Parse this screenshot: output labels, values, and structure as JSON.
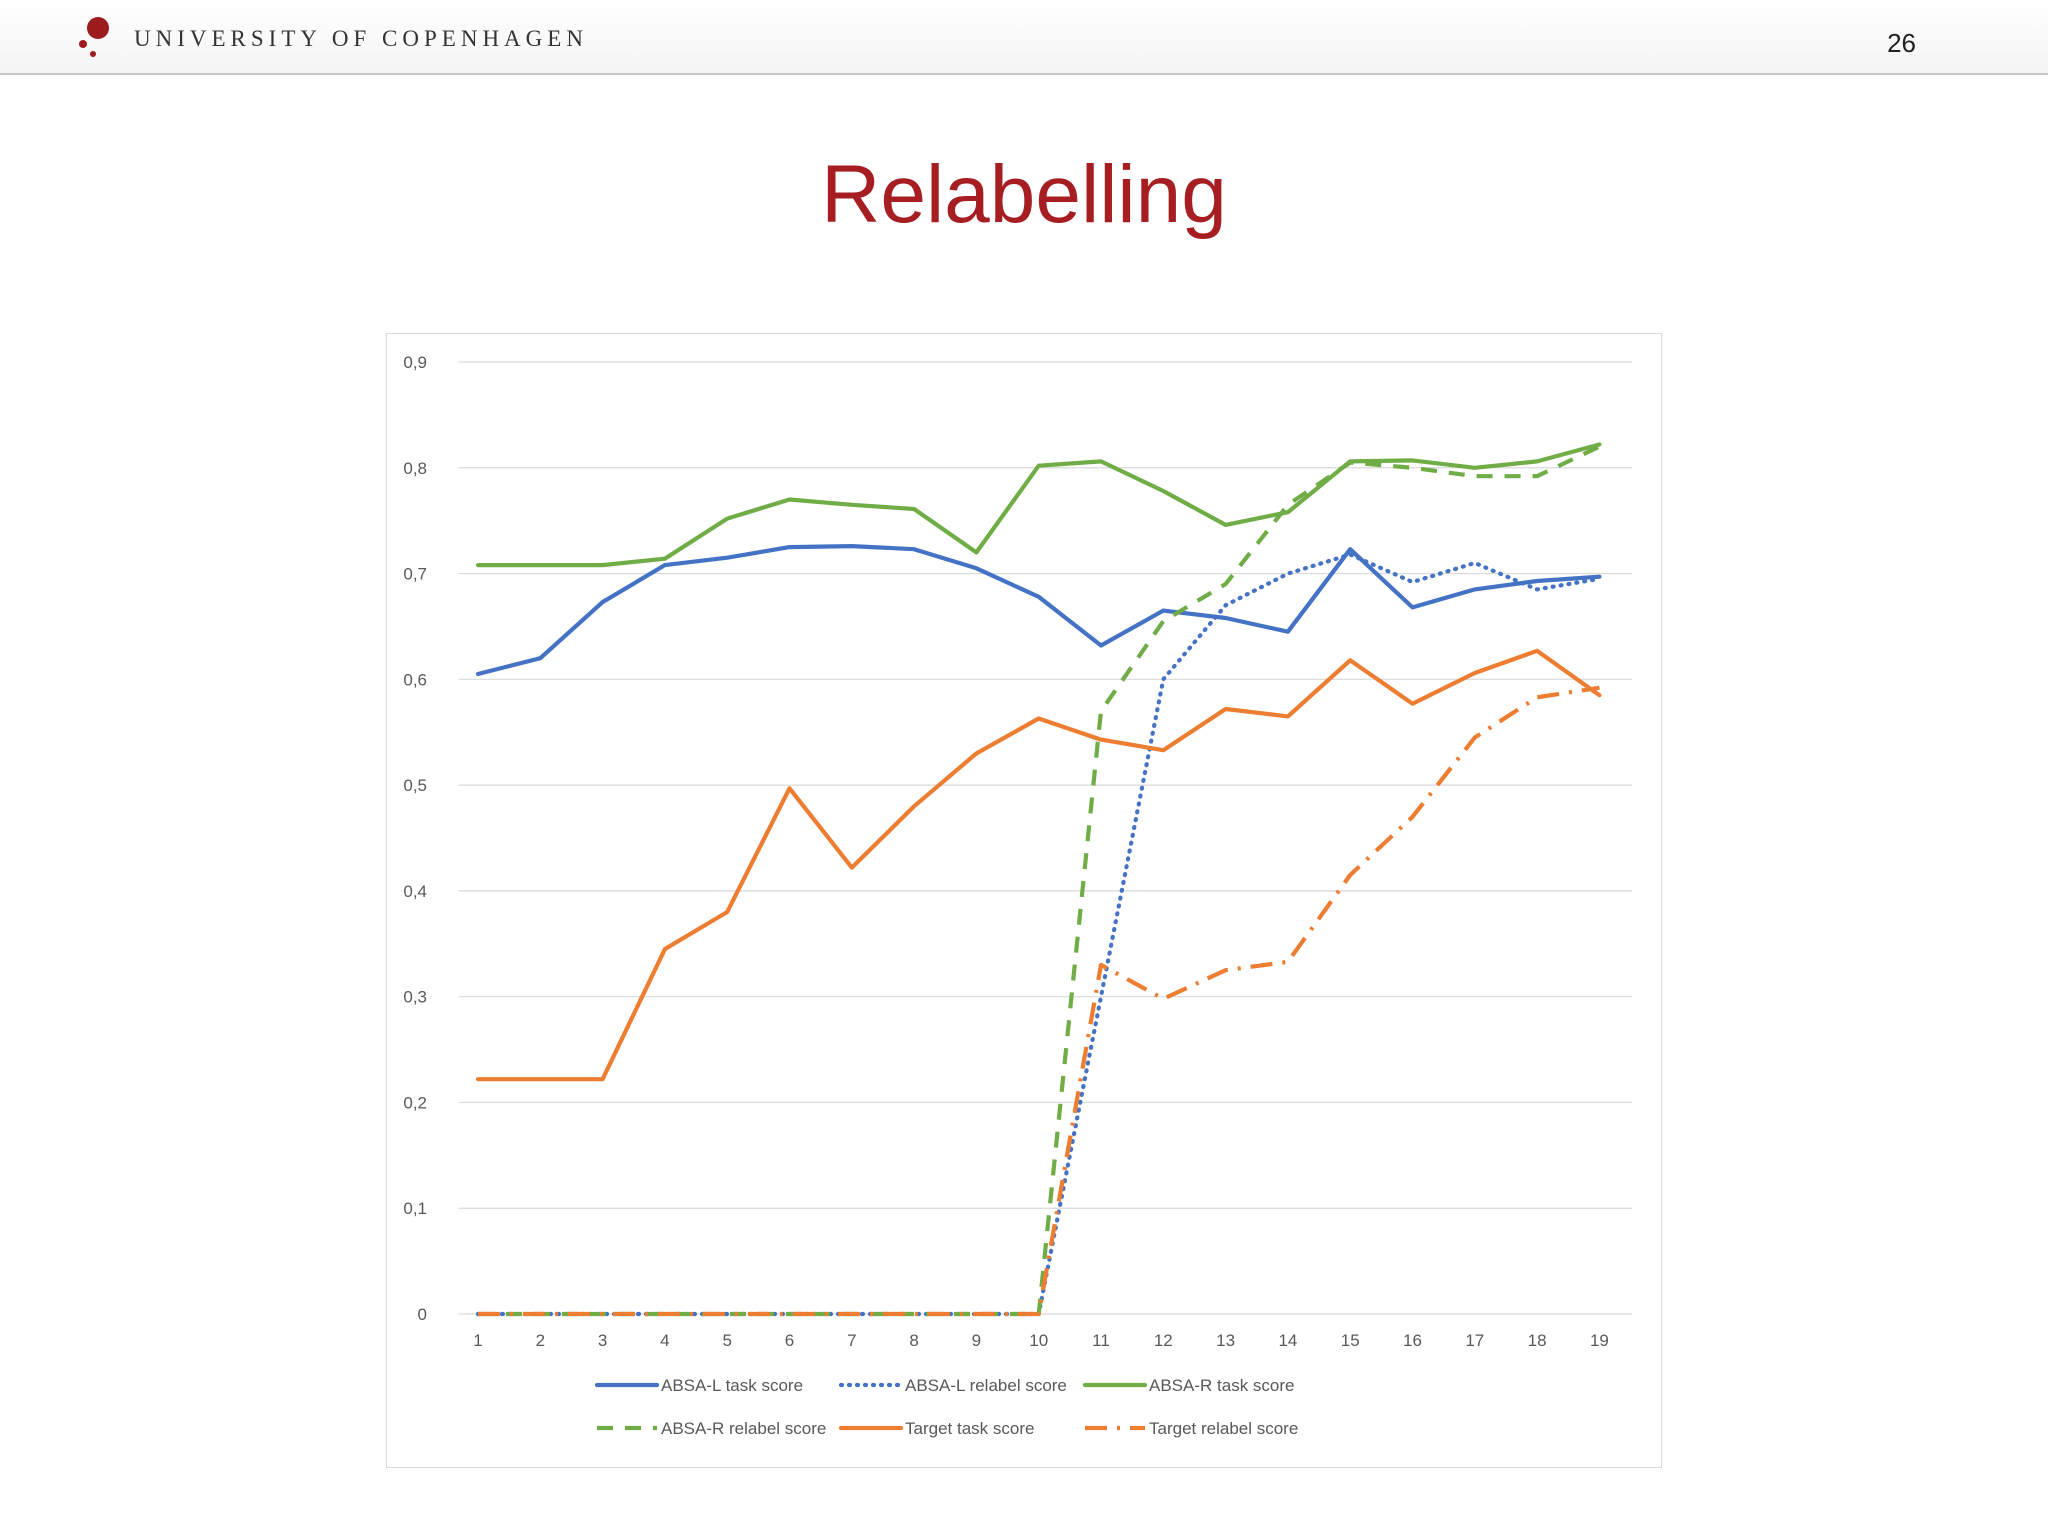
{
  "header": {
    "university": "UNIVERSITY OF COPENHAGEN",
    "page_number": "26",
    "brand_color": "#9b1b1f"
  },
  "slide": {
    "title": "Relabelling",
    "title_color": "#a61e22"
  },
  "chart_data": {
    "type": "line",
    "title": "",
    "xlabel": "",
    "ylabel": "",
    "ylim": [
      0,
      0.9
    ],
    "yticks": [
      0,
      0.1,
      0.2,
      0.3,
      0.4,
      0.5,
      0.6,
      0.7,
      0.8,
      0.9
    ],
    "ytick_labels": [
      "0",
      "0,1",
      "0,2",
      "0,3",
      "0,4",
      "0,5",
      "0,6",
      "0,7",
      "0,8",
      "0,9"
    ],
    "categories": [
      "1",
      "2",
      "3",
      "4",
      "5",
      "6",
      "7",
      "8",
      "9",
      "10",
      "11",
      "12",
      "13",
      "14",
      "15",
      "16",
      "17",
      "18",
      "19"
    ],
    "grid": true,
    "legend_position": "bottom",
    "series": [
      {
        "name": "ABSA-L task score",
        "color": "#4472c4",
        "dash": "solid",
        "values": [
          0.605,
          0.62,
          0.673,
          0.708,
          0.715,
          0.725,
          0.726,
          0.723,
          0.705,
          0.678,
          0.632,
          0.665,
          0.658,
          0.645,
          0.723,
          0.668,
          0.685,
          0.693,
          0.697
        ]
      },
      {
        "name": "ABSA-L relabel score",
        "color": "#4472c4",
        "dash": "dot",
        "values": [
          0,
          0,
          0,
          0,
          0,
          0,
          0,
          0,
          0,
          0,
          0.3,
          0.6,
          0.67,
          0.7,
          0.718,
          0.692,
          0.71,
          0.685,
          0.695
        ]
      },
      {
        "name": "ABSA-R task score",
        "color": "#70ad47",
        "dash": "solid",
        "values": [
          0.708,
          0.708,
          0.708,
          0.714,
          0.752,
          0.77,
          0.765,
          0.761,
          0.72,
          0.802,
          0.806,
          0.778,
          0.746,
          0.758,
          0.806,
          0.807,
          0.8,
          0.806,
          0.822
        ]
      },
      {
        "name": "ABSA-R relabel score",
        "color": "#70ad47",
        "dash": "dash",
        "values": [
          0,
          0,
          0,
          0,
          0,
          0,
          0,
          0,
          0,
          0,
          0.57,
          0.655,
          0.69,
          0.765,
          0.805,
          0.8,
          0.792,
          0.792,
          0.82
        ]
      },
      {
        "name": "Target task score",
        "color": "#ed7d31",
        "dash": "solid",
        "values": [
          0.222,
          0.222,
          0.222,
          0.345,
          0.38,
          0.497,
          0.422,
          0.48,
          0.53,
          0.563,
          0.543,
          0.533,
          0.572,
          0.565,
          0.618,
          0.577,
          0.606,
          0.627,
          0.585
        ]
      },
      {
        "name": "Target relabel score",
        "color": "#ed7d31",
        "dash": "dashdot",
        "values": [
          0,
          0,
          0,
          0,
          0,
          0,
          0,
          0,
          0,
          0,
          0.33,
          0.298,
          0.325,
          0.333,
          0.415,
          0.47,
          0.545,
          0.583,
          0.592
        ]
      }
    ]
  }
}
